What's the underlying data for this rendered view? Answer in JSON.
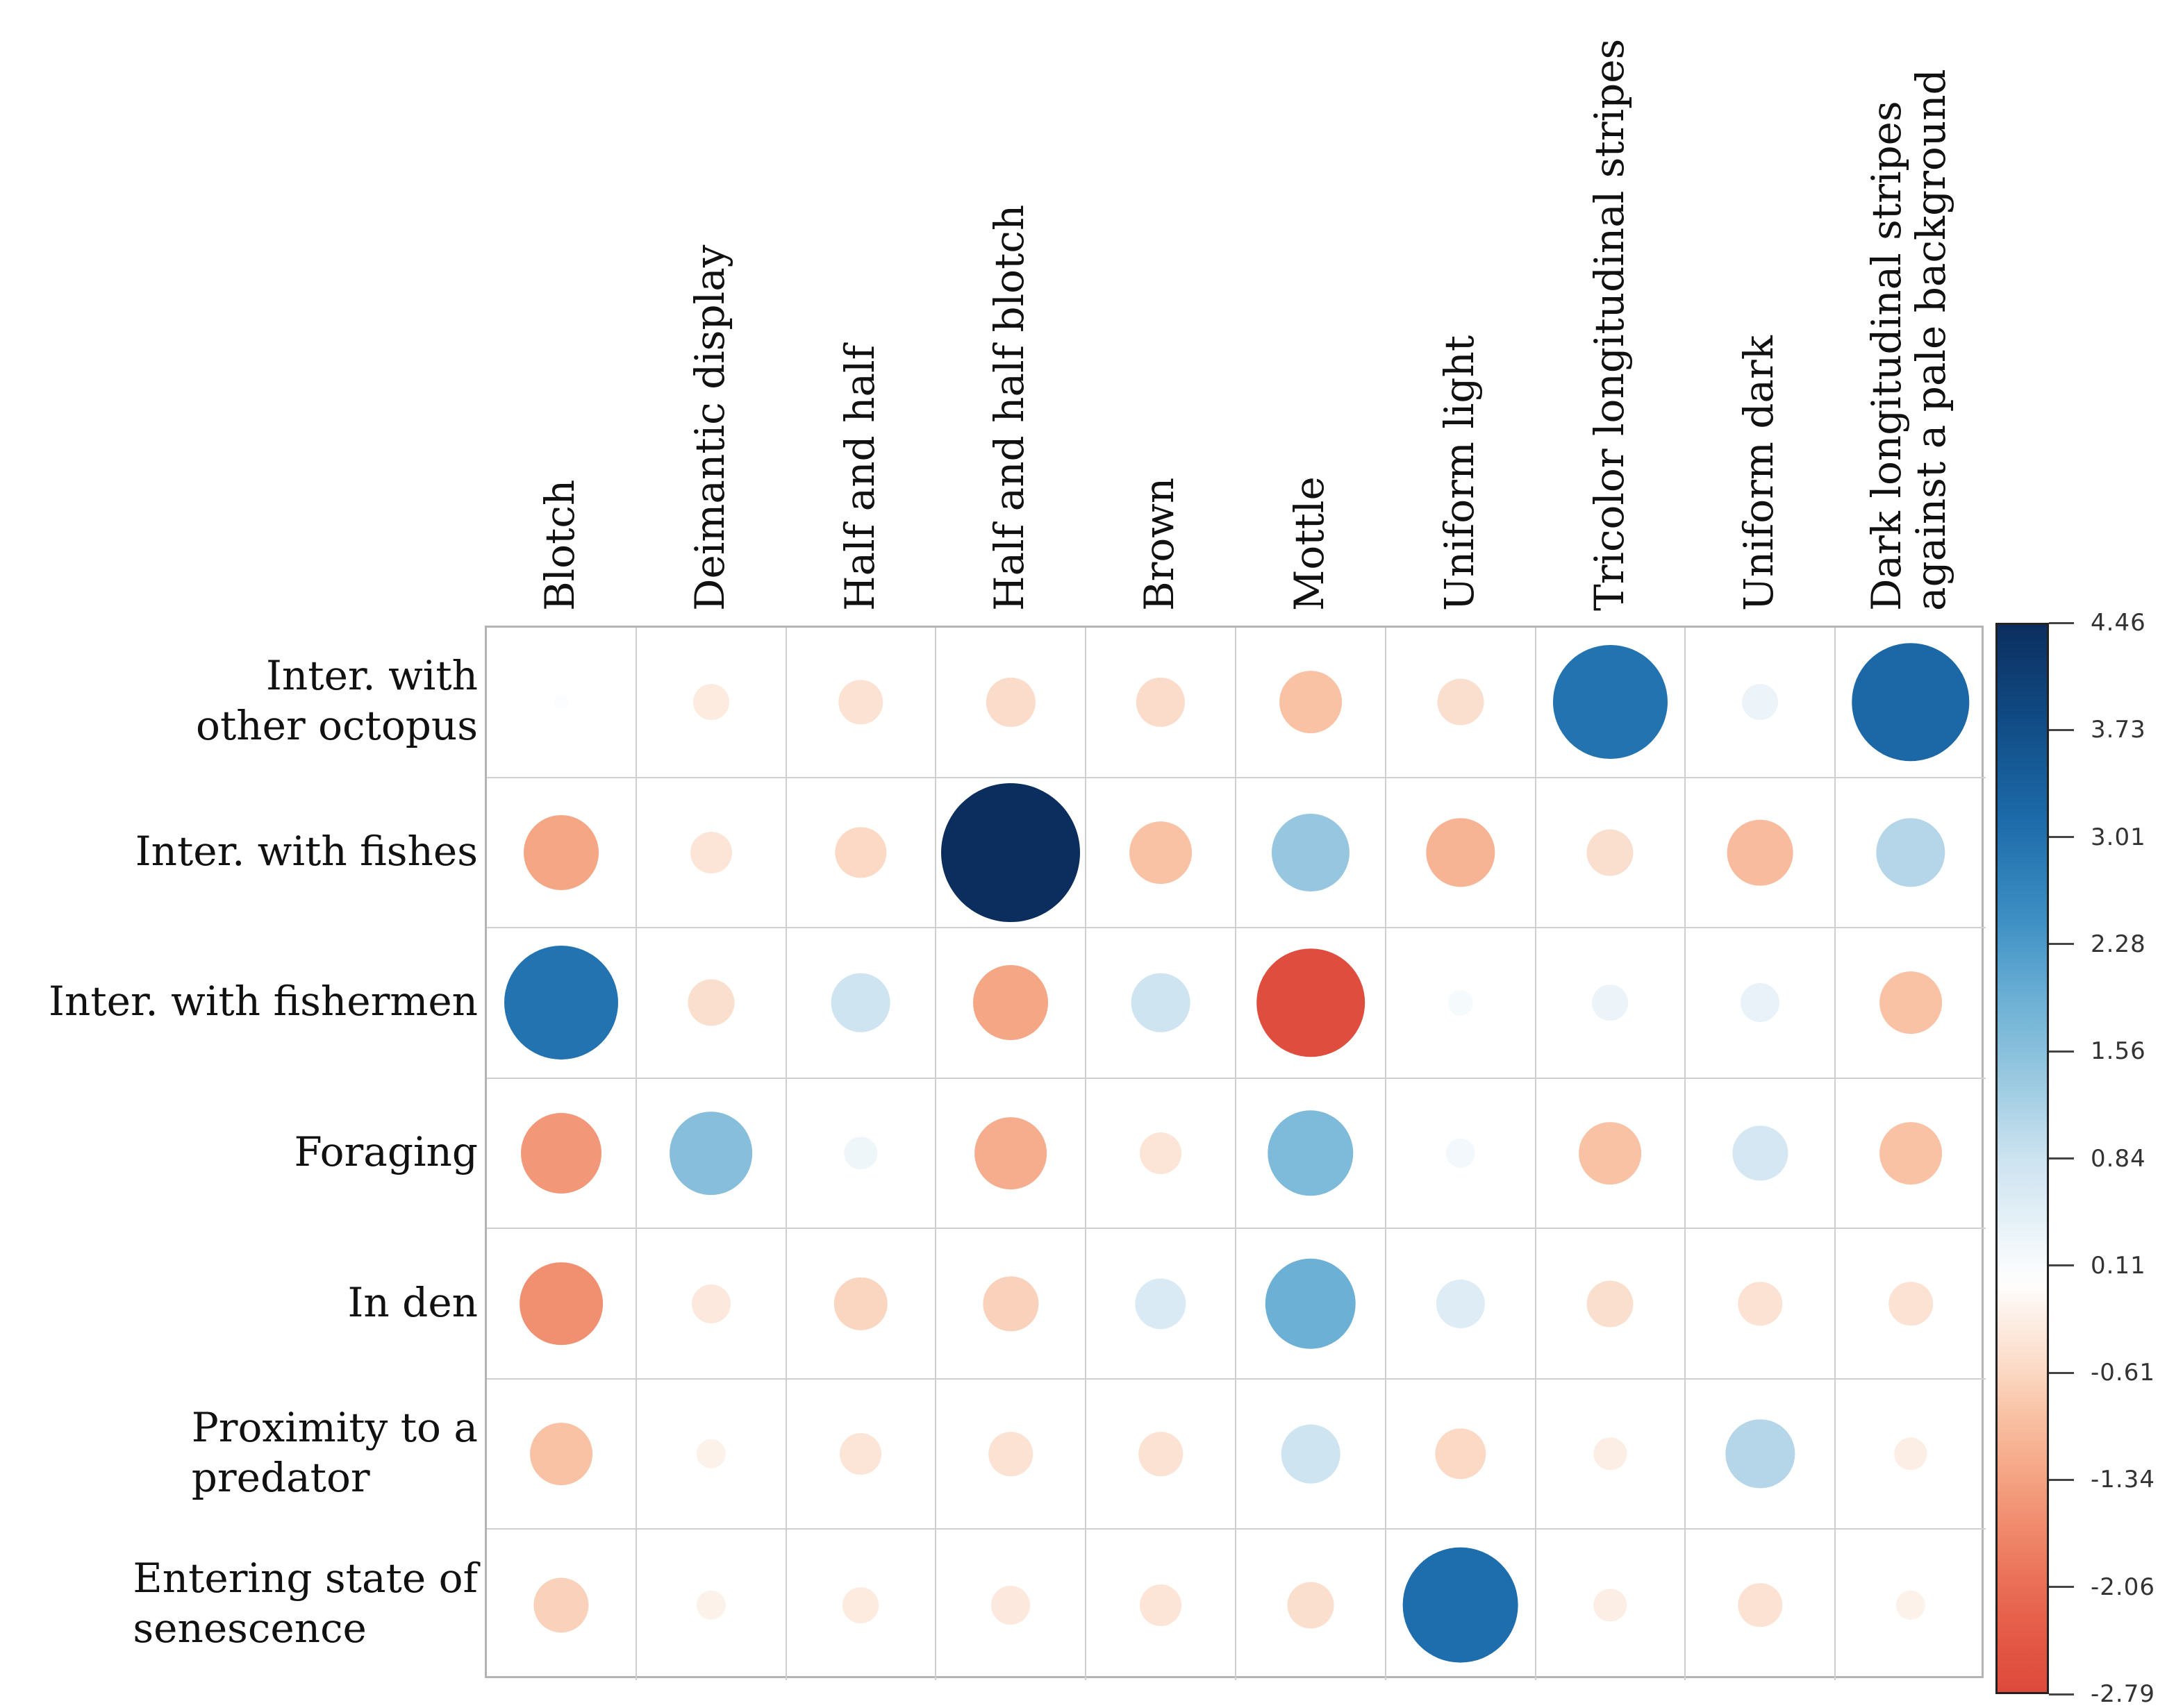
{
  "chart_data": {
    "type": "balloon-correlation-matrix",
    "title": "",
    "columns": [
      "Blotch",
      "Deimantic display",
      "Half and half",
      "Half and half blotch",
      "Brown",
      "Mottle",
      "Uniform light",
      "Tricolor longitudinal stripes",
      "Uniform dark",
      "Dark longitudinal stripes against a pale background"
    ],
    "column_label_lines": [
      [
        "Blotch"
      ],
      [
        "Deimantic display"
      ],
      [
        "Half and half"
      ],
      [
        "Half and half blotch"
      ],
      [
        "Brown"
      ],
      [
        "Mottle"
      ],
      [
        "Uniform light"
      ],
      [
        "Tricolor longitudinal stripes"
      ],
      [
        "Uniform dark"
      ],
      [
        "Dark longitudinal stripes",
        "against a pale background"
      ]
    ],
    "rows": [
      "Inter. with other octopus",
      "Inter. with fishes",
      "Inter. with fishermen",
      "Foraging",
      "In den",
      "Proximity to a predator",
      "Entering state of senescence"
    ],
    "row_label_lines": [
      [
        "Inter. with",
        "other octopus"
      ],
      [
        "Inter. with fishes"
      ],
      [
        "Inter. with fishermen"
      ],
      [
        "Foraging"
      ],
      [
        "In den"
      ],
      [
        "Proximity to a",
        "predator"
      ],
      [
        "Entering state of",
        "senescence"
      ]
    ],
    "values": [
      [
        0.05,
        -0.3,
        -0.45,
        -0.55,
        -0.55,
        -0.9,
        -0.5,
        3.0,
        0.3,
        3.2
      ],
      [
        -1.3,
        -0.4,
        -0.6,
        4.46,
        -0.9,
        1.4,
        -1.1,
        -0.5,
        -1.0,
        1.1
      ],
      [
        3.0,
        -0.5,
        0.8,
        -1.3,
        0.8,
        -2.7,
        0.15,
        0.3,
        0.35,
        -0.9
      ],
      [
        -1.5,
        1.6,
        0.25,
        -1.2,
        -0.4,
        1.7,
        0.2,
        -0.9,
        0.7,
        -0.9
      ],
      [
        -1.6,
        -0.35,
        -0.65,
        -0.7,
        0.6,
        1.9,
        0.55,
        -0.5,
        -0.45,
        -0.45
      ],
      [
        -0.9,
        -0.2,
        -0.4,
        -0.45,
        -0.45,
        0.8,
        -0.6,
        -0.25,
        1.1,
        -0.25
      ],
      [
        -0.7,
        -0.2,
        -0.3,
        -0.35,
        -0.4,
        -0.5,
        3.1,
        -0.25,
        -0.45,
        -0.2
      ]
    ],
    "value_min": -2.79,
    "value_max": 4.46,
    "size_encoding": "circle area proportional to |value|",
    "color_encoding": "blue positive, red negative, white near zero",
    "legend_position": "right",
    "grid": true,
    "colorbar_ticks": [
      "4.46",
      "3.73",
      "3.01",
      "2.28",
      "1.56",
      "0.84",
      "0.11",
      "-0.61",
      "-1.34",
      "-2.06",
      "-2.79"
    ],
    "palette": {
      "positive_stops": [
        [
          0.0,
          "#FFFFFF"
        ],
        [
          0.08,
          "#E8F2F8"
        ],
        [
          0.2,
          "#C9E1EF"
        ],
        [
          0.3,
          "#9CCAE1"
        ],
        [
          0.42,
          "#6FB2D6"
        ],
        [
          0.55,
          "#3E90C4"
        ],
        [
          0.7,
          "#1D6CAB"
        ],
        [
          0.85,
          "#114C86"
        ],
        [
          1.0,
          "#0B2E5F"
        ]
      ],
      "negative_stops": [
        [
          0.0,
          "#FFFFFF"
        ],
        [
          0.08,
          "#FDF0E7"
        ],
        [
          0.2,
          "#FBDCC9"
        ],
        [
          0.32,
          "#F9C3A6"
        ],
        [
          0.45,
          "#F5A988"
        ],
        [
          0.6,
          "#F08A6C"
        ],
        [
          0.75,
          "#E96C53"
        ],
        [
          0.88,
          "#E35744"
        ],
        [
          1.0,
          "#DD4A3C"
        ]
      ],
      "gridline_color": "#cfcfcf",
      "grid_border_color": "#b3b3b3",
      "colorbar_border_color": "#222222",
      "tick_label_color": "#333333"
    }
  }
}
